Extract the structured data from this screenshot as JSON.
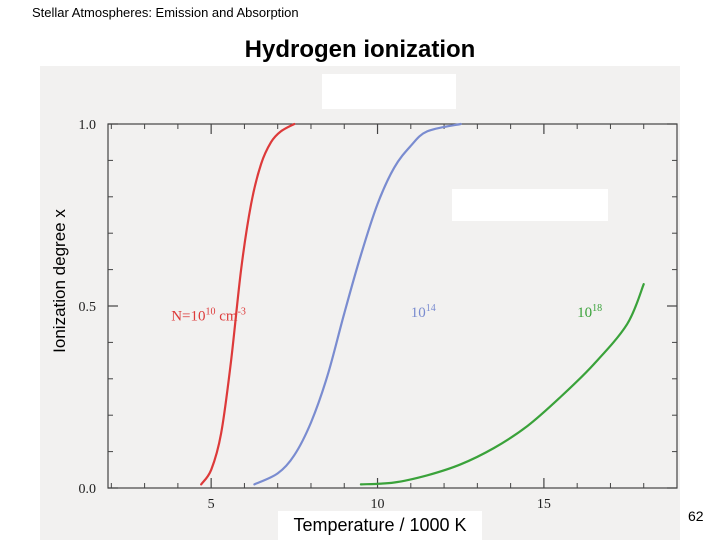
{
  "header": {
    "text": "Stellar Atmospheres:  Emission and Absorption"
  },
  "page_number": "62",
  "chart_data": {
    "type": "line",
    "title": "Hydrogen ionization",
    "xlabel": "Temperature / 1000 K",
    "ylabel": "Ionization degree  x",
    "xlim": [
      1.9,
      19
    ],
    "ylim": [
      0,
      1
    ],
    "xticks": [
      5,
      10,
      15
    ],
    "yticks": [
      0.0,
      0.5,
      1.0
    ],
    "yticks_display": [
      "0.0",
      "0.5",
      "1.0"
    ],
    "grid": false,
    "series": [
      {
        "name": "N=10^10 cm^-3",
        "label_base": "N=10",
        "label_exp": "10",
        "label_unit": " cm",
        "label_unit_exp": "-3",
        "color": "#dd3a3a",
        "x": [
          4.7,
          5.0,
          5.3,
          5.6,
          5.9,
          6.2,
          6.5,
          6.8,
          7.1,
          7.5
        ],
        "y": [
          0.01,
          0.05,
          0.15,
          0.35,
          0.6,
          0.78,
          0.89,
          0.95,
          0.98,
          1.0
        ]
      },
      {
        "name": "10^14",
        "label_base": "10",
        "label_exp": "14",
        "color": "#7a8cd0",
        "x": [
          6.3,
          7.0,
          7.5,
          8.0,
          8.5,
          9.0,
          9.5,
          10.0,
          10.5,
          11.0,
          11.5,
          12.5
        ],
        "y": [
          0.01,
          0.04,
          0.09,
          0.18,
          0.31,
          0.48,
          0.64,
          0.78,
          0.88,
          0.94,
          0.98,
          1.0
        ]
      },
      {
        "name": "10^18",
        "label_base": "10",
        "label_exp": "18",
        "color": "#3aa23a",
        "x": [
          9.5,
          10.5,
          11.5,
          12.5,
          13.5,
          14.5,
          15.5,
          16.5,
          17.5,
          18.0
        ],
        "y": [
          0.01,
          0.015,
          0.035,
          0.065,
          0.11,
          0.17,
          0.25,
          0.34,
          0.45,
          0.56
        ]
      }
    ]
  }
}
